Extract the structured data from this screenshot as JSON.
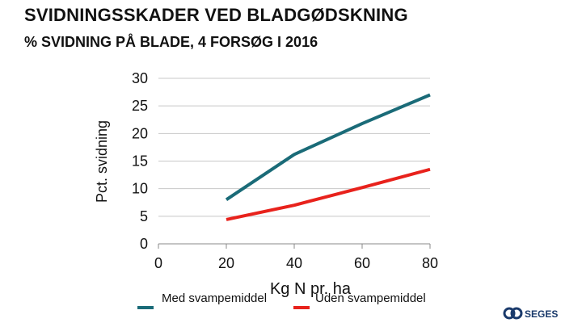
{
  "page": {
    "title": "SVIDNINGSSKADER VED BLADGØDSKNING",
    "subtitle": "% SVIDNING PÅ BLADE, 4 FORSØG I 2016"
  },
  "logo": {
    "text": "SEGES",
    "icon": "seges-logo-icon"
  },
  "colors": {
    "grid": "#c8c8c8",
    "axis": "#888888"
  },
  "chart_data": {
    "type": "line",
    "x": [
      20,
      40,
      60,
      80
    ],
    "series": [
      {
        "name": "Med svampemiddel",
        "values": [
          8.0,
          16.2,
          21.8,
          27.0
        ],
        "color": "#1a6b78"
      },
      {
        "name": "Uden svampemiddel",
        "values": [
          4.4,
          7.0,
          10.2,
          13.5
        ],
        "color": "#e8221c"
      }
    ],
    "xlabel": "Kg N pr. ha",
    "ylabel": "Pct. svidning",
    "xlim": [
      0,
      80
    ],
    "ylim": [
      0,
      30
    ],
    "xticks": [
      0,
      20,
      40,
      60,
      80
    ],
    "yticks": [
      0,
      5,
      10,
      15,
      20,
      25,
      30
    ],
    "grid": "horizontal",
    "legend": "bottom"
  }
}
